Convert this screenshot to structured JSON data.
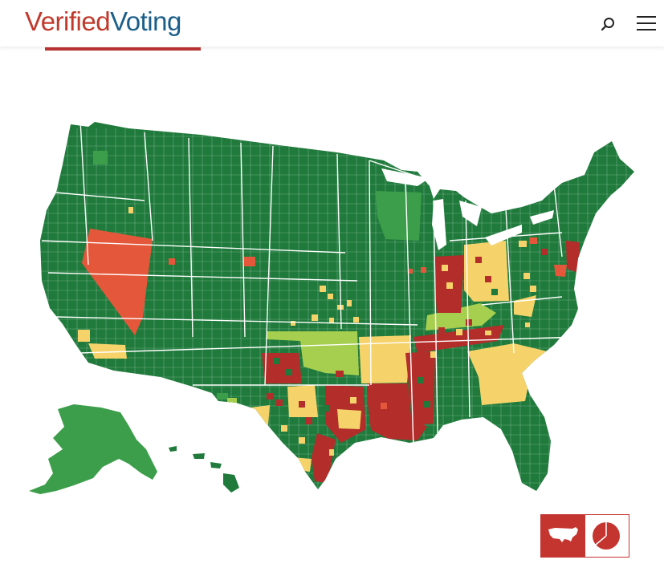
{
  "header": {
    "logo_part1": "Verified",
    "logo_part2": "Voting",
    "search_icon": "search-icon",
    "menu_icon": "hamburger-menu-icon"
  },
  "legend_colors": {
    "dark_green": "#1f7a3c",
    "medium_green": "#3c9e4a",
    "light_green": "#a6cf4f",
    "yellow": "#f5d36a",
    "orange": "#e4573a",
    "dark_red": "#b32d2b"
  },
  "view_toggle": {
    "map_view_icon": "us-map-icon",
    "chart_view_icon": "pie-chart-icon",
    "active_color": "#c43530"
  }
}
